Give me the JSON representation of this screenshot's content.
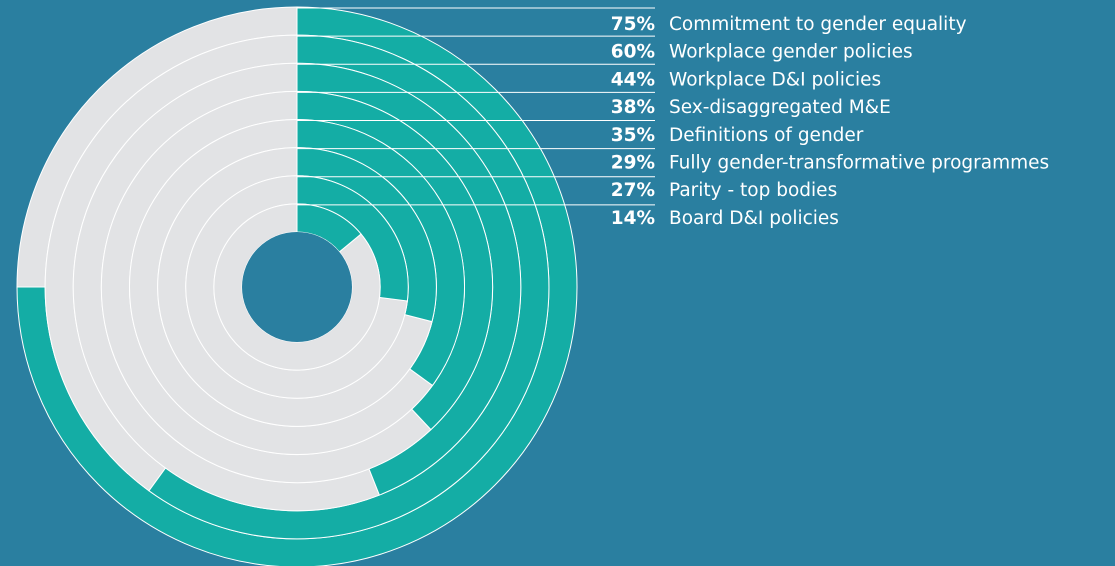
{
  "chart_data": {
    "type": "radial-bar",
    "unit": "%",
    "max": 100,
    "colors": {
      "background": "#2a7fa0",
      "value": "#14ada5",
      "remainder": "#e2e3e5",
      "separator": "#ffffff"
    },
    "series": [
      {
        "label": "Commitment to gender equality",
        "value": 75,
        "display": "75%"
      },
      {
        "label": "Workplace gender policies",
        "value": 60,
        "display": "60%"
      },
      {
        "label": "Workplace D&I policies",
        "value": 44,
        "display": "44%"
      },
      {
        "label": "Sex-disaggregated M&E",
        "value": 38,
        "display": "38%"
      },
      {
        "label": "Definitions of gender",
        "value": 35,
        "display": "35%"
      },
      {
        "label": "Fully gender-transformative programmes",
        "value": 29,
        "display": "29%"
      },
      {
        "label": "Parity - top bodies",
        "value": 27,
        "display": "27%"
      },
      {
        "label": "Board D&I policies",
        "value": 14,
        "display": "14%"
      }
    ]
  }
}
